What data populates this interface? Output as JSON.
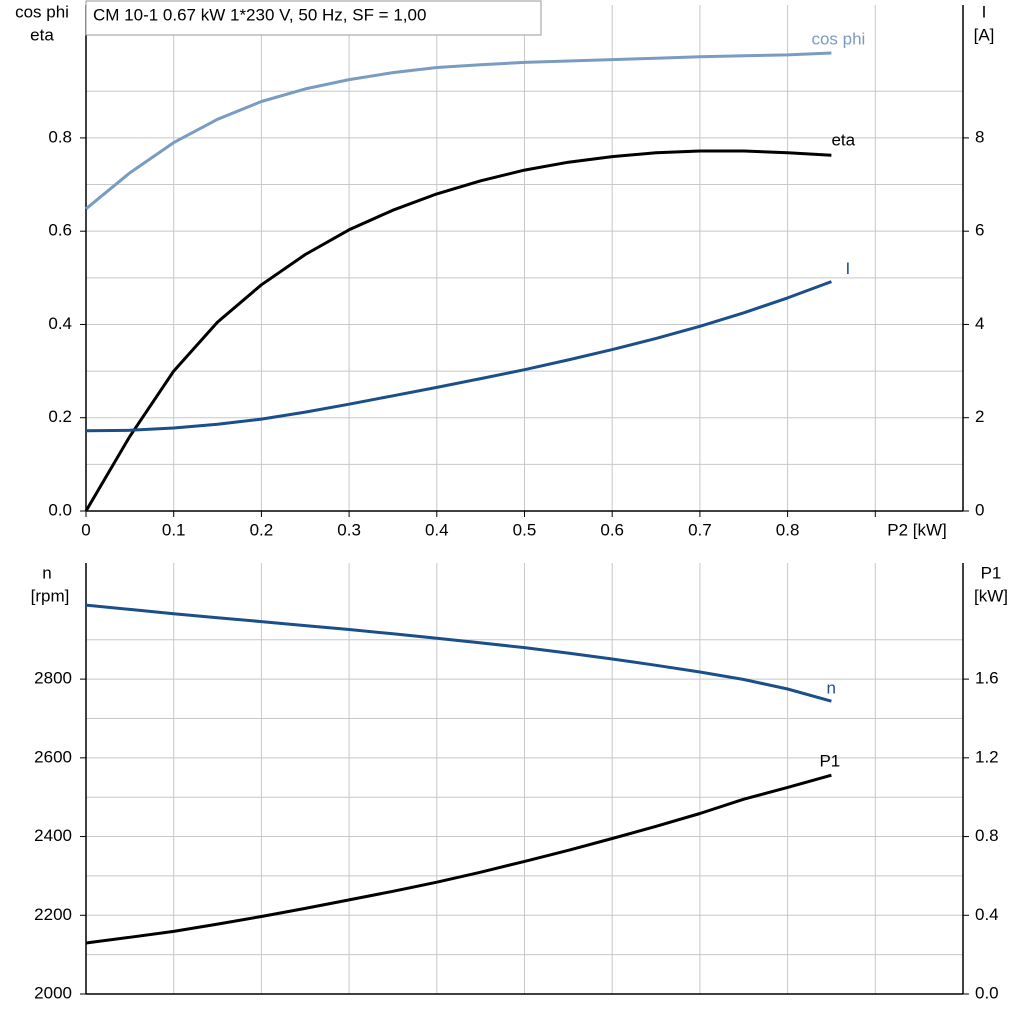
{
  "chart_data": [
    {
      "type": "line",
      "title": "CM 10-1   0.67 kW   1*230 V, 50 Hz, SF = 1,00",
      "x_label": "P2 [kW]",
      "y_label": [
        "cos phi",
        "eta"
      ],
      "y2_label": [
        "I",
        "[A]"
      ],
      "x": [
        0,
        0.05,
        0.1,
        0.15,
        0.2,
        0.25,
        0.3,
        0.35,
        0.4,
        0.45,
        0.5,
        0.55,
        0.6,
        0.65,
        0.7,
        0.75,
        0.8,
        0.85
      ],
      "xlim": [
        0,
        1
      ],
      "xticks": [
        0,
        0.1,
        0.2,
        0.3,
        0.4,
        0.5,
        0.6,
        0.7,
        0.8
      ],
      "ylim": [
        0,
        1.085
      ],
      "yticks": [
        {
          "value": 0,
          "label": "0.0"
        },
        0.2,
        0.4,
        0.6,
        0.8
      ],
      "y2lim": [
        0,
        10.85
      ],
      "y2ticks": [
        0,
        2,
        4,
        6,
        8
      ],
      "grid": true,
      "series": [
        {
          "name": "cos phi",
          "color": "#7a9cc0",
          "values": [
            0.648,
            0.725,
            0.79,
            0.84,
            0.878,
            0.905,
            0.925,
            0.94,
            0.951,
            0.957,
            0.962,
            0.965,
            0.968,
            0.971,
            0.974,
            0.976,
            0.978,
            0.982
          ]
        },
        {
          "name": "eta",
          "color": "#000000",
          "values": [
            0,
            0.16,
            0.3,
            0.405,
            0.485,
            0.55,
            0.603,
            0.645,
            0.68,
            0.708,
            0.731,
            0.748,
            0.76,
            0.768,
            0.772,
            0.772,
            0.768,
            0.763
          ]
        },
        {
          "name": "I",
          "color": "#1a4f8a",
          "axis": "y2",
          "values": [
            1.72,
            1.73,
            1.78,
            1.86,
            1.97,
            2.12,
            2.29,
            2.47,
            2.65,
            2.84,
            3.03,
            3.24,
            3.46,
            3.7,
            3.96,
            4.25,
            4.57,
            4.92
          ]
        }
      ]
    },
    {
      "type": "line",
      "y_label": [
        "n",
        "[rpm]"
      ],
      "y2_label": [
        "P1",
        "[kW]"
      ],
      "x": [
        0,
        0.05,
        0.1,
        0.15,
        0.2,
        0.25,
        0.3,
        0.35,
        0.4,
        0.45,
        0.5,
        0.55,
        0.6,
        0.65,
        0.7,
        0.75,
        0.8,
        0.85
      ],
      "xlim": [
        0,
        1
      ],
      "ylim": [
        2000,
        3095
      ],
      "yticks": [
        2000,
        2200,
        2400,
        2600,
        2800
      ],
      "y2lim": [
        0,
        2.19
      ],
      "y2ticks": [
        {
          "value": 0,
          "label": "0.0"
        },
        0.4,
        0.8,
        1.2,
        1.6
      ],
      "grid": true,
      "series": [
        {
          "name": "n",
          "color": "#1a4f8a",
          "values": [
            2988,
            2977,
            2966,
            2956,
            2946,
            2936,
            2926,
            2915,
            2904,
            2892,
            2880,
            2866,
            2851,
            2835,
            2818,
            2799,
            2775,
            2744
          ]
        },
        {
          "name": "P1",
          "color": "#000000",
          "axis": "y2",
          "values": [
            0.259,
            0.288,
            0.318,
            0.355,
            0.394,
            0.435,
            0.478,
            0.522,
            0.568,
            0.619,
            0.674,
            0.73,
            0.79,
            0.852,
            0.917,
            0.99,
            1.05,
            1.112
          ]
        }
      ]
    }
  ]
}
